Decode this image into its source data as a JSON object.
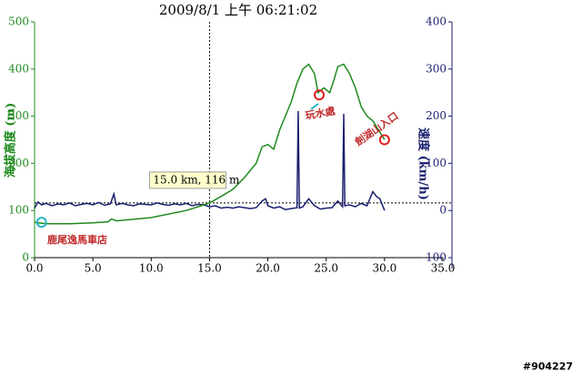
{
  "chart_data": {
    "type": "line",
    "title": "2009/8/1 上午 06:21:02",
    "y_label": "海拔高度 (m)",
    "y2_label": "速度 (km/h)",
    "xlim": [
      0,
      35
    ],
    "xticks": [
      {
        "value": 0,
        "label": "0.0"
      },
      {
        "value": 5,
        "label": "5.0"
      },
      {
        "value": 10,
        "label": "10.0"
      },
      {
        "value": 15,
        "label": "15.0"
      },
      {
        "value": 20,
        "label": "20.0"
      },
      {
        "value": 25,
        "label": "25.0"
      },
      {
        "value": 30,
        "label": "30.0"
      },
      {
        "value": 35,
        "label": "35.0"
      }
    ],
    "ylim": [
      0,
      500
    ],
    "yticks": [
      0,
      100,
      200,
      300,
      400,
      500
    ],
    "y2lim": [
      -100,
      400
    ],
    "y2ticks": [
      -100,
      0,
      100,
      200,
      300,
      400
    ],
    "series": [
      {
        "name": "海拔高度",
        "color": "#1f8a1f",
        "x": [
          0,
          1,
          3,
          5,
          6.3,
          6.6,
          7,
          10,
          13,
          14,
          15,
          16,
          17,
          18,
          19,
          19.5,
          20,
          20.5,
          21,
          21.5,
          22,
          22.5,
          23,
          23.5,
          24,
          24.3,
          24.8,
          25.3,
          25.7,
          26,
          26.5,
          27,
          27.5,
          28,
          28.5,
          29,
          29.5,
          30
        ],
        "values": [
          75,
          72,
          72,
          74,
          76,
          82,
          78,
          85,
          100,
          108,
          116,
          130,
          145,
          170,
          200,
          235,
          240,
          230,
          270,
          300,
          330,
          370,
          400,
          410,
          390,
          350,
          360,
          350,
          380,
          405,
          410,
          390,
          360,
          320,
          300,
          290,
          270,
          250
        ]
      },
      {
        "name": "速度",
        "color": "#1a1f6e",
        "axis": "y2",
        "x": [
          0,
          0.3,
          0.6,
          1,
          1.5,
          2,
          2.5,
          3,
          3.5,
          4,
          4.5,
          5,
          5.5,
          6,
          6.5,
          6.8,
          7,
          7.5,
          8,
          8.5,
          9,
          9.5,
          10,
          10.5,
          11,
          11.5,
          12,
          12.5,
          13,
          13.5,
          14,
          14.5,
          15,
          15.5,
          16,
          16.5,
          17,
          17.5,
          18,
          18.5,
          19,
          19.5,
          19.8,
          20,
          20.5,
          21,
          21.5,
          22,
          22.5,
          22.6,
          22.7,
          23,
          23.5,
          24,
          24.5,
          25,
          25.5,
          26,
          26.4,
          26.5,
          26.6,
          27,
          27.5,
          28,
          28.5,
          29,
          29.3,
          29.6,
          30
        ],
        "values": [
          5,
          18,
          12,
          15,
          10,
          14,
          12,
          16,
          10,
          13,
          15,
          12,
          17,
          11,
          14,
          35,
          12,
          15,
          12,
          10,
          14,
          13,
          12,
          16,
          13,
          11,
          14,
          12,
          15,
          10,
          13,
          12,
          8,
          10,
          5,
          7,
          5,
          8,
          6,
          4,
          6,
          20,
          25,
          10,
          5,
          8,
          2,
          4,
          6,
          211,
          5,
          8,
          25,
          10,
          3,
          5,
          6,
          20,
          8,
          205,
          10,
          12,
          8,
          15,
          10,
          40,
          30,
          25,
          0
        ]
      }
    ],
    "cursor": {
      "x": 15,
      "y": 116,
      "label": "15.0 km, 116 m"
    },
    "annotations": [
      "鹿尾逸馬車店",
      "玩水處",
      "劍湖山入口"
    ],
    "watermark": "#904227"
  }
}
